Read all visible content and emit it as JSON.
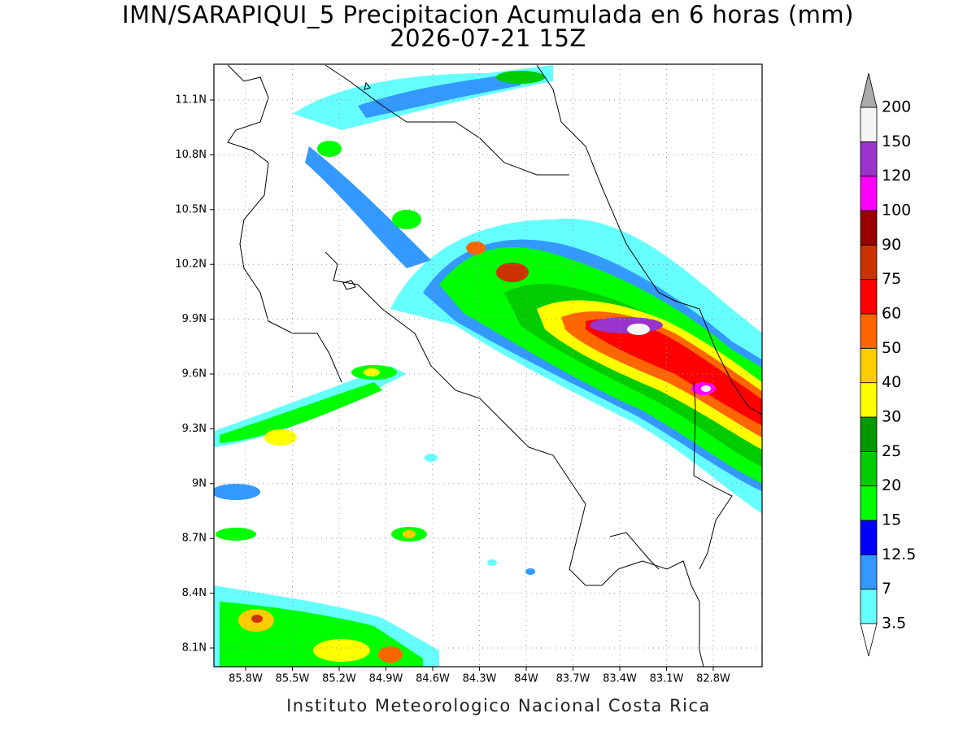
{
  "title": "IMN/SARAPIQUI_5 Precipitacion Acumulada en 6 horas (mm)",
  "subtitle": "2026-07-21 15Z",
  "lat_labels": [
    "11.1N",
    "10.8N",
    "10.5N",
    "10.2N",
    "9.9N",
    "9.6N",
    "9.3N",
    "9N",
    "8.7N",
    "8.4N",
    "8.1N"
  ],
  "lon_labels": [
    "85.8W",
    "85.5W",
    "85.2W",
    "84.9W",
    "84.6W",
    "84.3W",
    "84W",
    "83.7W",
    "83.4W",
    "83.1W",
    "82.8W"
  ],
  "colorbar": {
    "levels": [
      "3.5",
      "7",
      "12.5",
      "15",
      "20",
      "25",
      "30",
      "40",
      "50",
      "60",
      "75",
      "90",
      "100",
      "120",
      "150",
      "200"
    ],
    "colors": [
      "#66ffff",
      "#3399ff",
      "#0000ff",
      "#00ff00",
      "#00cc00",
      "#009900",
      "#ffff00",
      "#ffcc00",
      "#ff6600",
      "#ff0000",
      "#cc3300",
      "#990000",
      "#ff00ff",
      "#9933cc",
      "#f5f5f5"
    ],
    "below_color": "#ffffff",
    "above_color": "#aaaaaa"
  },
  "footer": "Instituto Meteorologico Nacional Costa Rica"
}
